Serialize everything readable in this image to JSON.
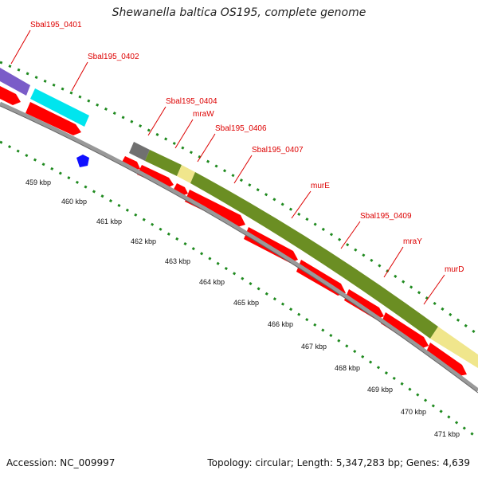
{
  "title": "Shewanella baltica OS195, complete genome",
  "footer": {
    "accession": "Accession: NC_009997",
    "summary": "Topology: circular; Length: 5,347,283 bp; Genes: 4,639"
  },
  "colors": {
    "gene_label": "#dd0000",
    "cds": "#ff0000",
    "backbone": "#888888",
    "tick_marks": "#1f8a1f",
    "track_purple": "#7a5cc8",
    "track_cyan": "#00e5ee",
    "track_gray": "#707070",
    "track_olive": "#6b8e23",
    "track_khaki": "#f0e68c",
    "marker_blue": "#1010ff"
  },
  "gene_labels": [
    "Sbal195_0401",
    "Sbal195_0402",
    "Sbal195_0404",
    "mraW",
    "Sbal195_0406",
    "Sbal195_0407",
    "murE",
    "Sbal195_0409",
    "mraY",
    "murD"
  ],
  "scale_labels": [
    "459 kbp",
    "460 kbp",
    "461 kbp",
    "462 kbp",
    "463 kbp",
    "464 kbp",
    "465 kbp",
    "466 kbp",
    "467 kbp",
    "468 kbp",
    "469 kbp",
    "470 kbp",
    "471 kbp"
  ]
}
